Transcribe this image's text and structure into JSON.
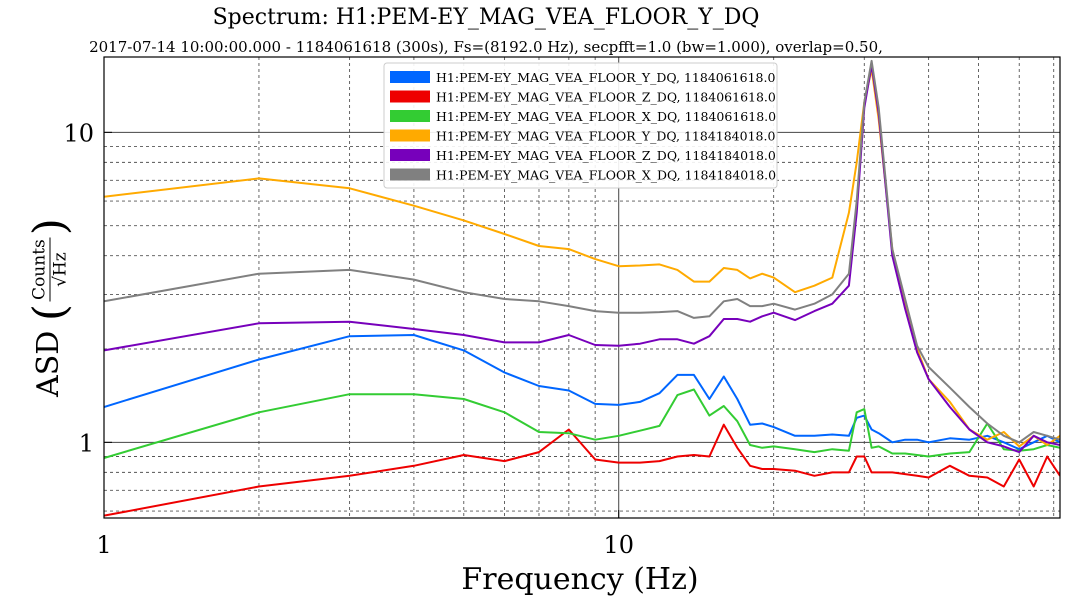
{
  "chart_data": {
    "type": "line",
    "title": "Spectrum: H1:PEM-EY_MAG_VEA_FLOOR_Y_DQ",
    "subtitle": "2017-07-14 10:00:00.000 - 1184061618 (300s), Fs=(8192.0 Hz), secpfft=1.0 (bw=1.000), overlap=0.50,",
    "xlabel": "Frequency (Hz)",
    "ylabel_prefix": "ASD",
    "ylabel_num": "Counts",
    "ylabel_den": "√Hz",
    "x_scale": "log",
    "y_scale": "log",
    "xlim": [
      1,
      72
    ],
    "ylim": [
      0.57,
      17.5
    ],
    "x_ticks": [
      1,
      10
    ],
    "x_tick_labels": [
      "1",
      "10"
    ],
    "y_ticks": [
      1,
      10
    ],
    "y_tick_labels": [
      "1",
      "10"
    ],
    "grid": true,
    "legend_position": "top-center",
    "series": [
      {
        "name": "H1:PEM-EY_MAG_VEA_FLOOR_Y_DQ, 1184061618.0",
        "color": "#0066ff",
        "x": [
          1,
          2,
          3,
          4,
          5,
          6,
          7,
          8,
          9,
          10,
          11,
          12,
          13,
          14,
          15,
          16,
          17,
          18,
          19,
          20,
          22,
          24,
          26,
          28,
          29,
          30,
          31,
          32,
          34,
          36,
          38,
          40,
          44,
          48,
          52,
          56,
          60,
          64,
          68,
          72
        ],
        "y": [
          1.3,
          1.85,
          2.2,
          2.22,
          1.98,
          1.68,
          1.52,
          1.47,
          1.33,
          1.32,
          1.35,
          1.44,
          1.65,
          1.65,
          1.38,
          1.63,
          1.38,
          1.14,
          1.15,
          1.12,
          1.05,
          1.05,
          1.06,
          1.05,
          1.2,
          1.22,
          1.1,
          1.07,
          1.0,
          1.02,
          1.02,
          1.0,
          1.03,
          1.02,
          1.05,
          1.0,
          0.95,
          1.0,
          1.05,
          1.0
        ]
      },
      {
        "name": "H1:PEM-EY_MAG_VEA_FLOOR_Z_DQ, 1184061618.0",
        "color": "#ee0000",
        "x": [
          1,
          2,
          3,
          4,
          5,
          6,
          7,
          8,
          9,
          10,
          11,
          12,
          13,
          14,
          15,
          16,
          17,
          18,
          19,
          20,
          22,
          24,
          26,
          28,
          29,
          30,
          31,
          32,
          34,
          36,
          38,
          40,
          44,
          48,
          52,
          56,
          60,
          64,
          68,
          72
        ],
        "y": [
          0.58,
          0.72,
          0.78,
          0.84,
          0.91,
          0.87,
          0.93,
          1.1,
          0.88,
          0.86,
          0.86,
          0.87,
          0.9,
          0.91,
          0.9,
          1.14,
          0.96,
          0.84,
          0.82,
          0.82,
          0.81,
          0.78,
          0.8,
          0.8,
          0.9,
          0.9,
          0.8,
          0.8,
          0.8,
          0.79,
          0.78,
          0.77,
          0.84,
          0.78,
          0.77,
          0.72,
          0.88,
          0.72,
          0.9,
          0.78
        ]
      },
      {
        "name": "H1:PEM-EY_MAG_VEA_FLOOR_X_DQ, 1184061618.0",
        "color": "#33cc33",
        "x": [
          1,
          2,
          3,
          4,
          5,
          6,
          7,
          8,
          9,
          10,
          11,
          12,
          13,
          14,
          15,
          16,
          17,
          18,
          19,
          20,
          22,
          24,
          26,
          28,
          29,
          30,
          31,
          32,
          34,
          36,
          38,
          40,
          44,
          48,
          52,
          56,
          60,
          64,
          68,
          72
        ],
        "y": [
          0.89,
          1.25,
          1.43,
          1.43,
          1.38,
          1.25,
          1.08,
          1.07,
          1.02,
          1.05,
          1.09,
          1.13,
          1.42,
          1.48,
          1.22,
          1.31,
          1.17,
          0.98,
          0.96,
          0.97,
          0.95,
          0.93,
          0.95,
          0.94,
          1.25,
          1.28,
          0.96,
          0.97,
          0.92,
          0.92,
          0.91,
          0.9,
          0.92,
          0.93,
          1.15,
          0.95,
          0.94,
          0.95,
          0.98,
          0.96
        ]
      },
      {
        "name": "H1:PEM-EY_MAG_VEA_FLOOR_Y_DQ, 1184184018.0",
        "color": "#ffaa00",
        "x": [
          1,
          2,
          3,
          4,
          5,
          6,
          7,
          8,
          9,
          10,
          11,
          12,
          13,
          14,
          15,
          16,
          17,
          18,
          19,
          20,
          22,
          24,
          26,
          28,
          29,
          30,
          31,
          32,
          34,
          36,
          38,
          40,
          44,
          48,
          52,
          56,
          60,
          64,
          68,
          72
        ],
        "y": [
          6.2,
          7.1,
          6.6,
          5.8,
          5.2,
          4.7,
          4.3,
          4.2,
          3.9,
          3.7,
          3.72,
          3.75,
          3.6,
          3.3,
          3.3,
          3.65,
          3.6,
          3.38,
          3.5,
          3.4,
          3.05,
          3.2,
          3.4,
          5.5,
          8.0,
          12.5,
          16.0,
          11.0,
          4.2,
          2.8,
          2.0,
          1.6,
          1.35,
          1.1,
          1.02,
          1.08,
          0.97,
          1.05,
          0.98,
          1.05
        ]
      },
      {
        "name": "H1:PEM-EY_MAG_VEA_FLOOR_Z_DQ, 1184184018.0",
        "color": "#7700bb",
        "x": [
          1,
          2,
          3,
          4,
          5,
          6,
          7,
          8,
          9,
          10,
          11,
          12,
          13,
          14,
          15,
          16,
          17,
          18,
          19,
          20,
          22,
          24,
          26,
          28,
          29,
          30,
          31,
          32,
          34,
          36,
          38,
          40,
          44,
          48,
          52,
          56,
          60,
          64,
          68,
          72
        ],
        "y": [
          1.98,
          2.42,
          2.45,
          2.32,
          2.22,
          2.1,
          2.1,
          2.22,
          2.06,
          2.05,
          2.08,
          2.15,
          2.15,
          2.08,
          2.2,
          2.5,
          2.5,
          2.45,
          2.55,
          2.62,
          2.48,
          2.65,
          2.8,
          3.2,
          5.5,
          12.0,
          16.5,
          11.5,
          4.0,
          2.7,
          1.95,
          1.6,
          1.3,
          1.1,
          1.0,
          0.97,
          0.93,
          1.05,
          1.0,
          0.98
        ]
      },
      {
        "name": "H1:PEM-EY_MAG_VEA_FLOOR_X_DQ, 1184184018.0",
        "color": "#808080",
        "x": [
          1,
          2,
          3,
          4,
          5,
          6,
          7,
          8,
          9,
          10,
          11,
          12,
          13,
          14,
          15,
          16,
          17,
          18,
          19,
          20,
          22,
          24,
          26,
          28,
          29,
          30,
          31,
          32,
          34,
          36,
          38,
          40,
          44,
          48,
          52,
          56,
          60,
          64,
          68,
          72
        ],
        "y": [
          2.85,
          3.5,
          3.6,
          3.35,
          3.05,
          2.9,
          2.85,
          2.75,
          2.65,
          2.62,
          2.62,
          2.63,
          2.65,
          2.52,
          2.55,
          2.85,
          2.9,
          2.75,
          2.75,
          2.8,
          2.68,
          2.8,
          3.0,
          3.5,
          6.0,
          12.5,
          17.0,
          12.0,
          4.2,
          2.9,
          2.05,
          1.75,
          1.5,
          1.3,
          1.15,
          1.05,
          1.0,
          1.08,
          1.05,
          1.02
        ]
      }
    ]
  }
}
